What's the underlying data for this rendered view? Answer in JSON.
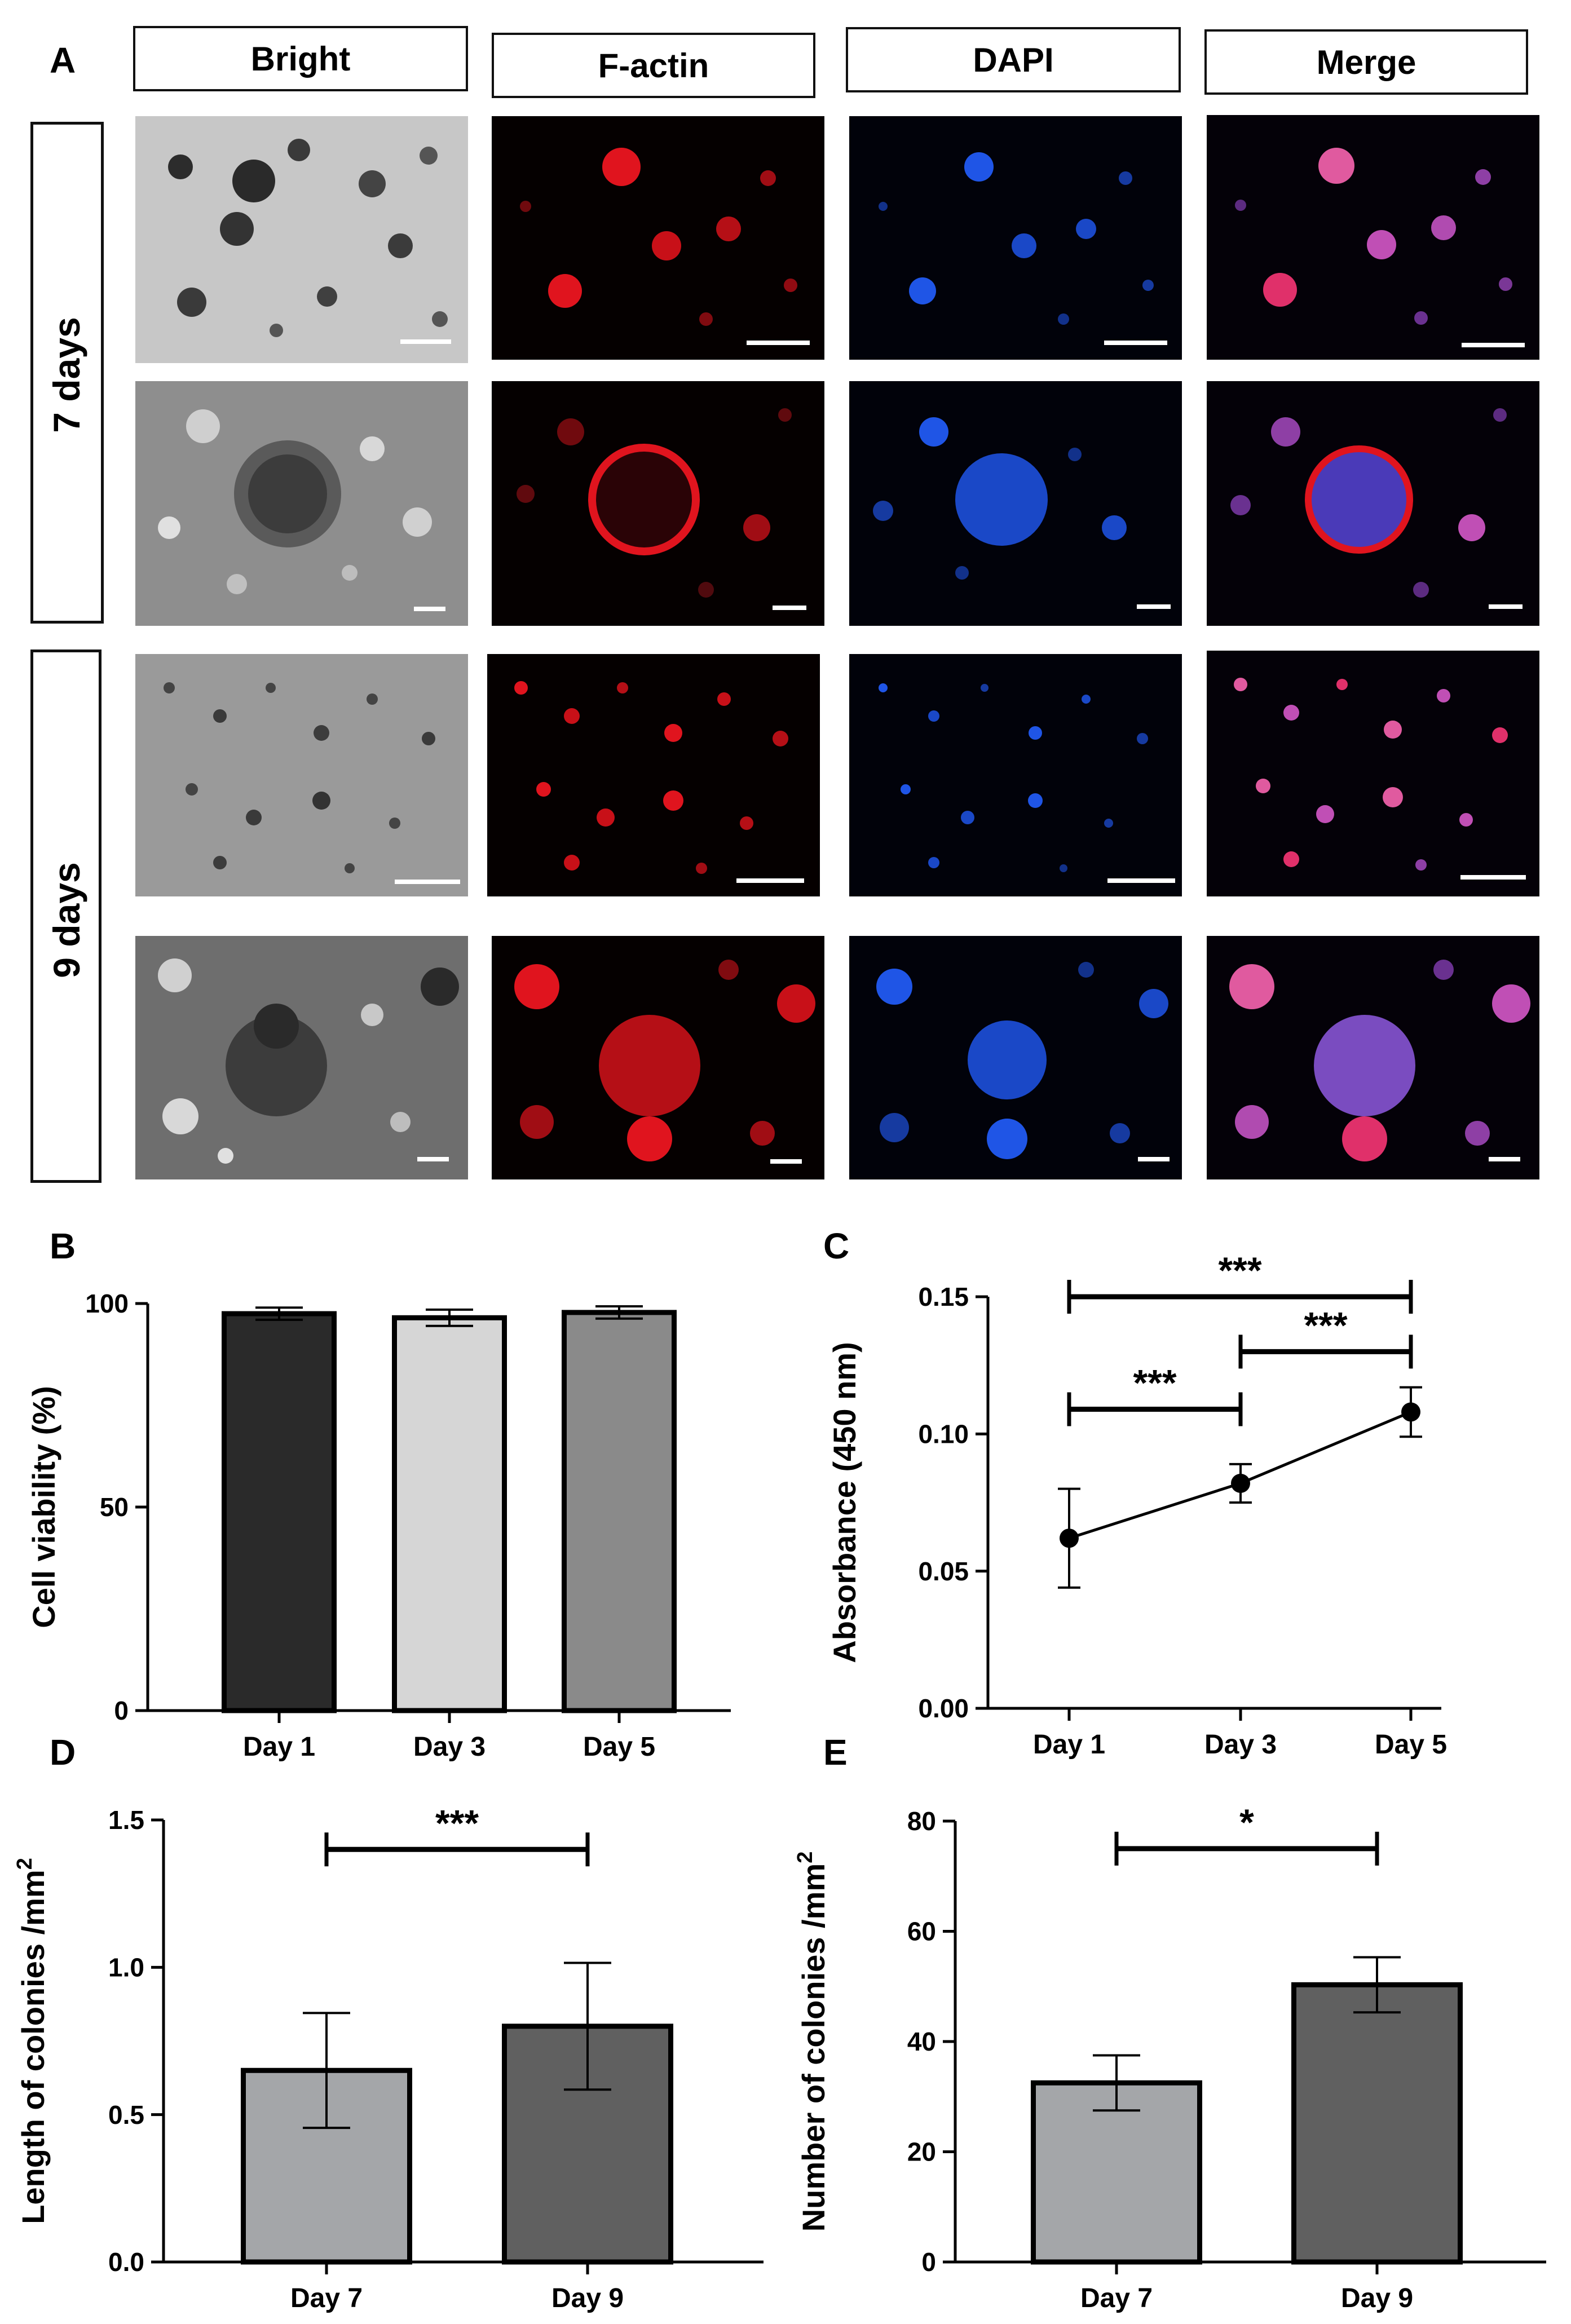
{
  "panel_a": {
    "letter": "A",
    "columns": [
      "Bright",
      "F-actin",
      "DAPI",
      "Merge"
    ],
    "rows": [
      {
        "label": "7 days"
      },
      {
        "label": "9 days"
      }
    ]
  },
  "colors": {
    "f_actin": "#e0141e",
    "dapi": "#1f55e6",
    "merge": "#c04fb5",
    "bar_dark": "#2a2a2a",
    "bar_light": "#d6d6d6",
    "bar_mid": "#8a8a8a",
    "bar_d7": "#a4a6a9",
    "bar_d9": "#606060"
  },
  "chart_data": [
    {
      "id": "B",
      "letter": "B",
      "type": "bar",
      "categories": [
        "Day 1",
        "Day 3",
        "Day 5"
      ],
      "values": [
        97.5,
        96.5,
        97.8
      ],
      "errors": [
        1.5,
        2.0,
        1.5
      ],
      "ylabel": "Cell viability (%)",
      "ylim": [
        0,
        100
      ],
      "yticks": [
        0,
        50,
        100
      ],
      "fills": [
        "#2a2a2a",
        "#d6d6d6",
        "#8a8a8a"
      ],
      "significance": []
    },
    {
      "id": "C",
      "letter": "C",
      "type": "line",
      "categories": [
        "Day 1",
        "Day 3",
        "Day 5"
      ],
      "values": [
        0.062,
        0.082,
        0.108
      ],
      "errors": [
        0.018,
        0.007,
        0.009
      ],
      "ylabel": "Absorbance (450 nm)",
      "ylim": [
        0,
        0.15
      ],
      "yticks": [
        0.0,
        0.05,
        0.1,
        0.15
      ],
      "ytick_labels": [
        "0.00",
        "0.05",
        "0.10",
        "0.15"
      ],
      "significance": [
        {
          "from": 0,
          "to": 2,
          "level": 0.15,
          "label": "***"
        },
        {
          "from": 1,
          "to": 2,
          "level": 0.13,
          "label": "***"
        },
        {
          "from": 0,
          "to": 1,
          "level": 0.109,
          "label": "***"
        }
      ]
    },
    {
      "id": "D",
      "letter": "D",
      "type": "bar",
      "categories": [
        "Day 7",
        "Day 9"
      ],
      "values": [
        0.65,
        0.8
      ],
      "errors": [
        0.195,
        0.215
      ],
      "ylabel": "Length of colonies /mm",
      "ylabel_sup": "2",
      "ylim": [
        0,
        1.5
      ],
      "yticks": [
        0.0,
        0.5,
        1.0,
        1.5
      ],
      "ytick_labels": [
        "0.0",
        "0.5",
        "1.0",
        "1.5"
      ],
      "fills": [
        "#a4a6a9",
        "#606060"
      ],
      "significance": [
        {
          "from": 0,
          "to": 1,
          "level": 1.4,
          "label": "***"
        }
      ]
    },
    {
      "id": "E",
      "letter": "E",
      "type": "bar",
      "categories": [
        "Day 7",
        "Day 9"
      ],
      "values": [
        32.5,
        50.3
      ],
      "errors": [
        5.0,
        5.0
      ],
      "ylabel": "Number of colonies /mm",
      "ylabel_sup": "2",
      "ylim": [
        0,
        80
      ],
      "yticks": [
        0,
        20,
        40,
        60,
        80
      ],
      "fills": [
        "#a4a6a9",
        "#606060"
      ],
      "significance": [
        {
          "from": 0,
          "to": 1,
          "level": 75,
          "label": "*"
        }
      ]
    }
  ]
}
